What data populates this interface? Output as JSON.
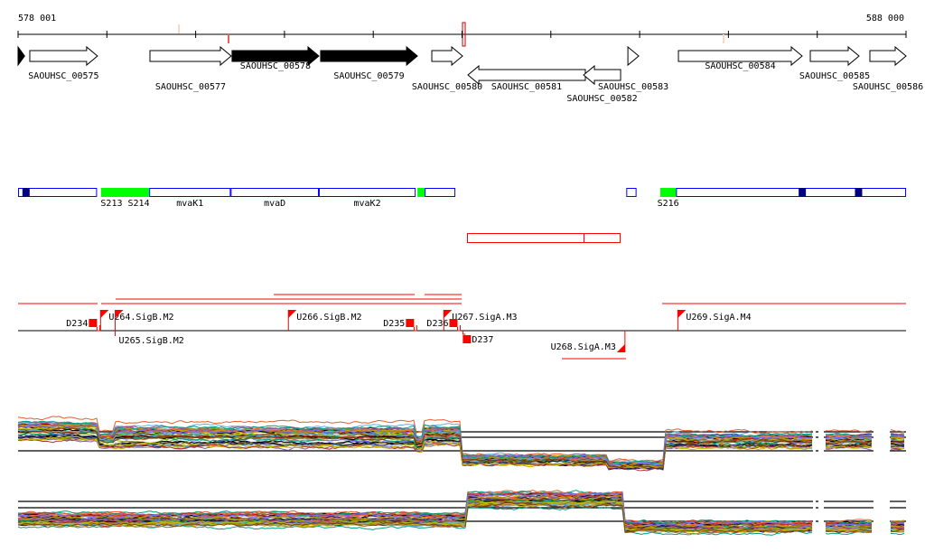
{
  "ruler": {
    "start_label": "578 001",
    "end_label": "588 000",
    "start": 578001,
    "end": 588000
  },
  "genes": [
    {
      "name": "",
      "start": 578001,
      "end": 578075,
      "strand": "+",
      "filled": true,
      "label_row": 0
    },
    {
      "name": "SAOUHSC_00575",
      "start": 578133,
      "end": 578895,
      "strand": "+",
      "filled": false,
      "label_row": 1
    },
    {
      "name": "SAOUHSC_00577",
      "start": 579486,
      "end": 580401,
      "strand": "+",
      "filled": false,
      "label_row": 2
    },
    {
      "name": "SAOUHSC_00578",
      "start": 580411,
      "end": 581388,
      "strand": "+",
      "filled": true,
      "label_row": 0
    },
    {
      "name": "SAOUHSC_00579",
      "start": 581408,
      "end": 582498,
      "strand": "+",
      "filled": true,
      "label_row": 1
    },
    {
      "name": "SAOUHSC_00580",
      "start": 582660,
      "end": 583006,
      "strand": "+",
      "filled": false,
      "label_row": 2
    },
    {
      "name": "SAOUHSC_00581",
      "start": 583067,
      "end": 584389,
      "strand": "-",
      "filled": false,
      "label_row": 2
    },
    {
      "name": "SAOUHSC_00582",
      "start": 584369,
      "end": 584786,
      "strand": "-",
      "filled": false,
      "label_row": 3
    },
    {
      "name": "SAOUHSC_00583",
      "start": 584868,
      "end": 584990,
      "strand": "+",
      "filled": false,
      "label_row": 2
    },
    {
      "name": "SAOUHSC_00584",
      "start": 585437,
      "end": 586830,
      "strand": "+",
      "filled": false,
      "label_row": 0
    },
    {
      "name": "SAOUHSC_00585",
      "start": 586922,
      "end": 587471,
      "strand": "+",
      "filled": false,
      "label_row": 1
    },
    {
      "name": "SAOUHSC_00586",
      "start": 587593,
      "end": 588000,
      "strand": "+",
      "filled": false,
      "label_row": 2
    }
  ],
  "segments": [
    {
      "label": "",
      "start": 578001,
      "end": 578890,
      "color": "#ffffff"
    },
    {
      "label": "S213 S214",
      "start": 578935,
      "end": 579478,
      "color": "#00ff00"
    },
    {
      "label": "mvaK1",
      "start": 579478,
      "end": 580395,
      "color": "#ffffff"
    },
    {
      "label": "mvaD",
      "start": 580395,
      "end": 581388,
      "color": "#ffffff"
    },
    {
      "label": "mvaK2",
      "start": 581388,
      "end": 582478,
      "color": "#ffffff"
    },
    {
      "label": "",
      "start": 582498,
      "end": 582580,
      "color": "#00ff00"
    },
    {
      "label": "",
      "start": 582580,
      "end": 582925,
      "color": "#ffffff"
    },
    {
      "label": "",
      "start": 584850,
      "end": 584965,
      "color": "#ffffff"
    },
    {
      "label": "S216",
      "start": 585233,
      "end": 585410,
      "color": "#00ff00"
    },
    {
      "label": "",
      "start": 585410,
      "end": 588000,
      "color": "#ffffff"
    }
  ],
  "dark_marks": [
    578050,
    586791,
    587425
  ],
  "features": [
    {
      "label": "D234",
      "pos": 578900,
      "type": "D",
      "side": "up"
    },
    {
      "label": "U264.SigB.M2",
      "pos": 578930,
      "type": "U",
      "side": "up"
    },
    {
      "label": "U265.SigB.M2",
      "pos": 579095,
      "type": "U",
      "side": "up"
    },
    {
      "label": "U266.SigB.M2",
      "pos": 581045,
      "type": "U",
      "side": "up"
    },
    {
      "label": "D235",
      "pos": 582470,
      "type": "D",
      "side": "up"
    },
    {
      "label": "U267.SigA.M3",
      "pos": 582795,
      "type": "U",
      "side": "up"
    },
    {
      "label": "D236",
      "pos": 582960,
      "type": "D",
      "side": "up"
    },
    {
      "label": "D237",
      "pos": 583040,
      "type": "D",
      "side": "down"
    },
    {
      "label": "U268.SigA.M3",
      "pos": 584835,
      "type": "U",
      "side": "down"
    },
    {
      "label": "U269.SigA.M4",
      "pos": 585430,
      "type": "U",
      "side": "up"
    }
  ],
  "colors": {
    "accent": "#ff0000",
    "segment_border": "#0000ff",
    "dark_mark": "#000080",
    "green": "#00ff00"
  },
  "profile_colors": [
    "#e06030",
    "#80a020",
    "#60b0e0",
    "#c04080",
    "#202060",
    "#a08030",
    "#40c040",
    "#ff6040",
    "#8060a0",
    "#d0a000",
    "#00a080",
    "#b03030",
    "#7070ff",
    "#c0c000",
    "#804000"
  ]
}
